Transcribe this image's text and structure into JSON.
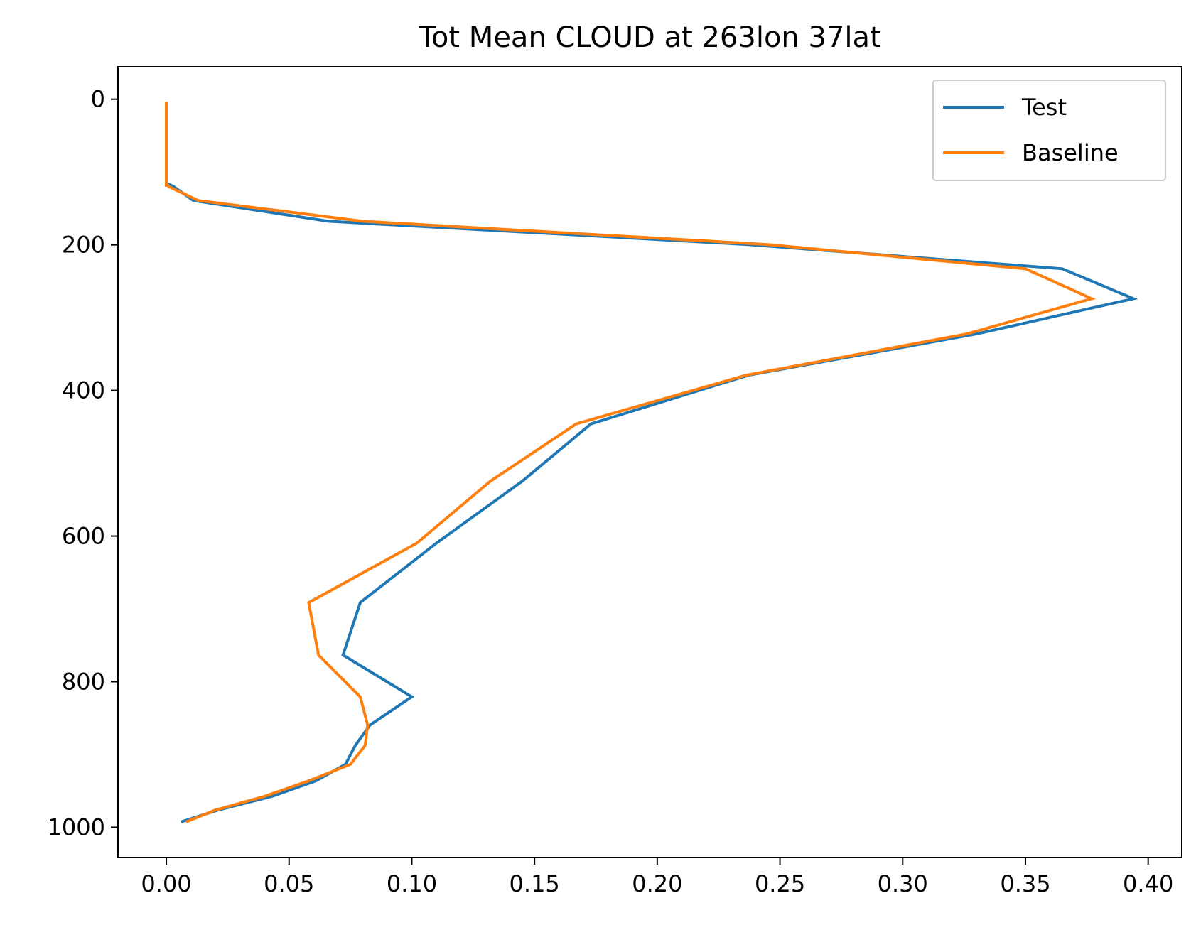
{
  "chart_data": {
    "type": "line",
    "title": "Tot Mean CLOUD at 263lon 37lat",
    "xlabel": "",
    "ylabel": "",
    "xlim": [
      -0.0197,
      0.4137
    ],
    "ylim": [
      1041.5,
      -44.6
    ],
    "y_inverted": true,
    "grid": false,
    "legend_position": "upper right",
    "xticks": [
      0.0,
      0.05,
      0.1,
      0.15,
      0.2,
      0.25,
      0.3,
      0.35,
      0.4
    ],
    "xtick_labels": [
      "0.00",
      "0.05",
      "0.10",
      "0.15",
      "0.20",
      "0.25",
      "0.30",
      "0.35",
      "0.40"
    ],
    "yticks": [
      0,
      200,
      400,
      600,
      800,
      1000
    ],
    "ytick_labels": [
      "0",
      "200",
      "400",
      "600",
      "800",
      "1000"
    ],
    "series": [
      {
        "name": "Test",
        "color": "#1f77b4",
        "x": [
          0.0,
          0.0,
          0.0,
          0.0,
          0.0,
          0.0,
          0.0,
          0.0,
          0.0,
          0.0,
          0.0,
          0.0,
          0.0,
          0.0,
          0.0,
          0.0,
          0.003,
          0.011,
          0.066,
          0.237,
          0.365,
          0.394,
          0.33,
          0.237,
          0.173,
          0.145,
          0.11,
          0.079,
          0.072,
          0.1,
          0.083,
          0.077,
          0.073,
          0.061,
          0.043,
          0.021,
          0.006
        ],
        "y": [
          3.6,
          7.6,
          14.4,
          24.6,
          38.3,
          54.6,
          72.0,
          87.8,
          103.8,
          107.8,
          111.0,
          114.0,
          117.4,
          120.0,
          120.0,
          115.0,
          120.0,
          139.1,
          167.5,
          199.6,
          232.8,
          273.9,
          322.4,
          379.2,
          445.9,
          524.6,
          609.8,
          691.4,
          763.4,
          820.8,
          859.5,
          887.5,
          913.5,
          936.2,
          957.5,
          976.3,
          992.6
        ]
      },
      {
        "name": "Baseline",
        "color": "#ff7f0e",
        "x": [
          0.0,
          0.0,
          0.0,
          0.0,
          0.0,
          0.0,
          0.0,
          0.0,
          0.0,
          0.0,
          0.0,
          0.0,
          0.0,
          0.0,
          0.0,
          0.001,
          0.013,
          0.08,
          0.245,
          0.35,
          0.377,
          0.326,
          0.236,
          0.167,
          0.132,
          0.102,
          0.058,
          0.062,
          0.079,
          0.082,
          0.081,
          0.075,
          0.058,
          0.04,
          0.02,
          0.008
        ],
        "y": [
          3.6,
          7.6,
          14.4,
          24.6,
          38.3,
          54.6,
          72.0,
          87.8,
          103.8,
          107.8,
          111.0,
          114.0,
          117.4,
          120.0,
          115.0,
          120.0,
          139.1,
          167.5,
          199.6,
          232.8,
          273.9,
          322.4,
          379.2,
          445.9,
          524.6,
          609.8,
          691.4,
          763.4,
          820.8,
          859.5,
          887.5,
          913.5,
          936.2,
          957.5,
          976.3,
          992.6
        ]
      }
    ]
  }
}
